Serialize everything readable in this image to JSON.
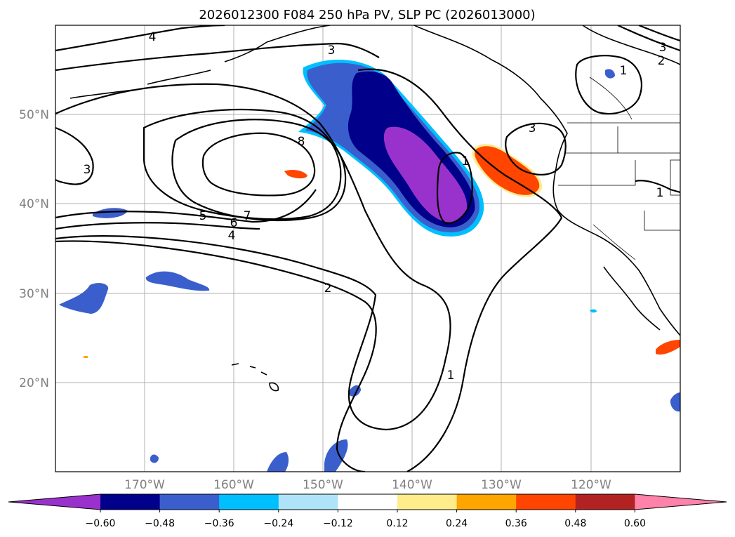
{
  "title": "2026012300 F084 250 hPa PV, SLP PC (2026013000)",
  "lon_labels": [
    "170°W",
    "160°W",
    "150°W",
    "140°W",
    "130°W",
    "120°W"
  ],
  "lat_labels": [
    "50°N",
    "40°N",
    "30°N",
    "20°N"
  ],
  "colorbar": {
    "ticks": [
      "−0.60",
      "−0.48",
      "−0.36",
      "−0.24",
      "−0.12",
      "0.12",
      "0.24",
      "0.36",
      "0.48",
      "0.60"
    ],
    "colors": [
      "#9932cc",
      "#00008b",
      "#3a5fcd",
      "#00bfff",
      "#aee3fa",
      "#ffffff",
      "#ffec8b",
      "#ffa500",
      "#ff4500",
      "#b22222",
      "#ff82ab"
    ]
  },
  "contour_labels": [
    "4",
    "3",
    "3",
    "2",
    "1",
    "3",
    "8",
    "1",
    "3",
    "5",
    "6",
    "7",
    "4",
    "2",
    "1",
    "1"
  ]
}
